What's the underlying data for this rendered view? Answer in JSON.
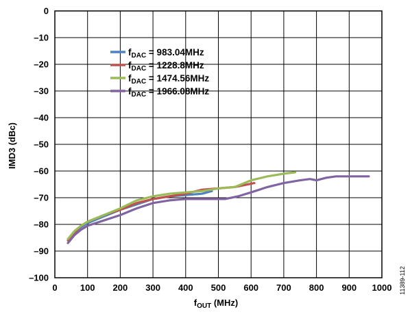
{
  "chart_data": {
    "type": "line",
    "title": "",
    "xlabel": {
      "main": "f",
      "sub": "OUT",
      "rest": " (MHz)"
    },
    "ylabel": "IMD3 (dBc)",
    "xlim": [
      0,
      1000
    ],
    "ylim": [
      -100,
      0
    ],
    "x_ticks": [
      0,
      100,
      200,
      300,
      400,
      500,
      600,
      700,
      800,
      900,
      1000
    ],
    "x_tick_labels": [
      "0",
      "100",
      "200",
      "300",
      "400",
      "500",
      "600",
      "700",
      "800",
      "900",
      "1000"
    ],
    "y_ticks": [
      0,
      -10,
      -20,
      -30,
      -40,
      -50,
      -60,
      -70,
      -80,
      -90,
      -100
    ],
    "y_tick_labels": [
      "0",
      "–10",
      "–20",
      "–30",
      "–40",
      "–50",
      "–60",
      "–70",
      "–80",
      "–90",
      "–100"
    ],
    "grid": true,
    "legend_position": "upper-left",
    "figure_id": "11389-112",
    "series": [
      {
        "label_main": "f",
        "label_sub": "DAC",
        "label_rest": " = 983.04MHz",
        "color": "#4f81bd",
        "x": [
          40,
          60,
          80,
          100,
          150,
          200,
          250,
          300,
          350,
          400,
          450,
          480
        ],
        "y": [
          -86,
          -83,
          -81,
          -79.5,
          -77,
          -74.5,
          -72.5,
          -70.5,
          -69.5,
          -69,
          -68.5,
          -67.5
        ]
      },
      {
        "label_main": "f",
        "label_sub": "DAC",
        "label_rest": " = 1228.8MHz",
        "color": "#c0504d",
        "x": [
          40,
          60,
          80,
          100,
          150,
          200,
          250,
          300,
          350,
          400,
          450,
          500,
          550,
          610
        ],
        "y": [
          -86,
          -83,
          -80.5,
          -79,
          -76.5,
          -74.5,
          -72,
          -70.5,
          -69.5,
          -68.5,
          -67,
          -66.5,
          -66,
          -64.5
        ]
      },
      {
        "label_main": "f",
        "label_sub": "DAC",
        "label_rest": " = 1474.56MHz",
        "color": "#9bbb59",
        "x": [
          40,
          60,
          80,
          100,
          150,
          200,
          250,
          300,
          350,
          400,
          450,
          500,
          550,
          600,
          650,
          700,
          735
        ],
        "y": [
          -85.5,
          -82.5,
          -80.5,
          -79,
          -76.5,
          -74,
          -71,
          -69.5,
          -68.5,
          -68,
          -67.5,
          -66.5,
          -66,
          -63.5,
          -62,
          -61,
          -60.5
        ]
      },
      {
        "label_main": "f",
        "label_sub": "DAC",
        "label_rest": " = 1966.08MHz",
        "color": "#8064a2",
        "x": [
          40,
          60,
          80,
          100,
          150,
          200,
          250,
          300,
          350,
          400,
          430,
          460,
          500,
          520,
          560,
          600,
          650,
          700,
          750,
          780,
          800,
          830,
          860,
          900,
          960
        ],
        "y": [
          -87,
          -84,
          -82,
          -80.5,
          -78.5,
          -76.5,
          -74,
          -72,
          -71,
          -70.5,
          -70.5,
          -70.5,
          -70.5,
          -70.5,
          -69.5,
          -68,
          -66,
          -64.5,
          -63.5,
          -63,
          -63.5,
          -62.5,
          -62,
          -62,
          -62
        ]
      }
    ]
  }
}
